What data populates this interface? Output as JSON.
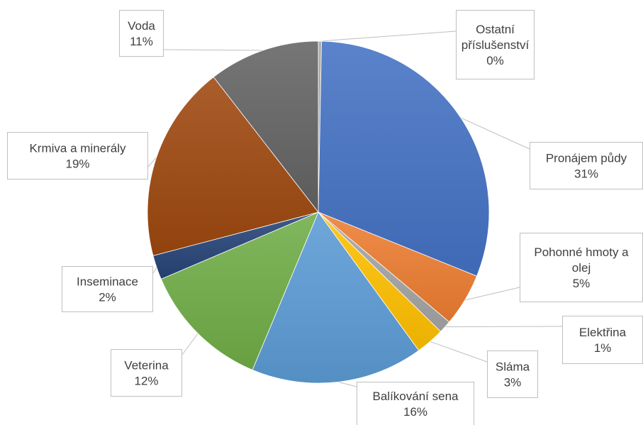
{
  "chart_data": {
    "type": "pie",
    "title": "",
    "start_angle_deg": 0,
    "direction": "clockwise",
    "slices": [
      {
        "label": [
          "Ostatní",
          "příslušenství"
        ],
        "pct_label": "0%",
        "value": 0.3,
        "color": "#a5a5a5"
      },
      {
        "label": [
          "Pronájem půdy"
        ],
        "pct_label": "31%",
        "value": 30.8,
        "color": "#4472c4"
      },
      {
        "label": [
          "Pohonné hmoty a",
          "olej"
        ],
        "pct_label": "5%",
        "value": 5.0,
        "color": "#ed7d31"
      },
      {
        "label": [
          "Elektřina"
        ],
        "pct_label": "1%",
        "value": 1.2,
        "color": "#a5a5a5"
      },
      {
        "label": [
          "Sláma"
        ],
        "pct_label": "3%",
        "value": 2.7,
        "color": "#ffc000"
      },
      {
        "label": [
          "Balíkování sena"
        ],
        "pct_label": "16%",
        "value": 16.3,
        "color": "#5b9bd5"
      },
      {
        "label": [
          "Veterina"
        ],
        "pct_label": "12%",
        "value": 12.3,
        "color": "#70ad47"
      },
      {
        "label": [
          "Inseminace"
        ],
        "pct_label": "2%",
        "value": 2.3,
        "color": "#264478"
      },
      {
        "label": [
          "Krmiva a minerály"
        ],
        "pct_label": "19%",
        "value": 18.6,
        "color": "#9e480e"
      },
      {
        "label": [
          "Voda"
        ],
        "pct_label": "11%",
        "value": 10.5,
        "color": "#636363"
      }
    ]
  }
}
